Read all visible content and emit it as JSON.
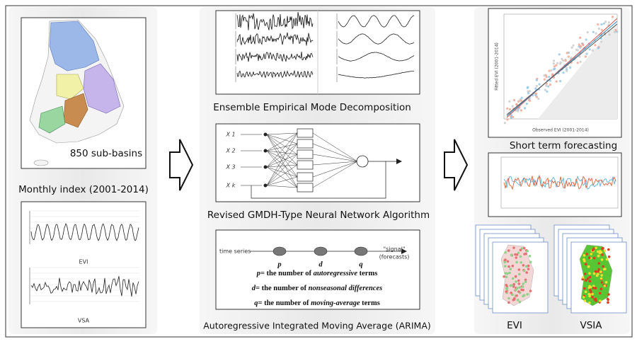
{
  "left": {
    "map_label": "850 sub-basins",
    "index_label": "Monthly index (2001-2014)",
    "chart_labels": [
      "EVI",
      "VSA"
    ]
  },
  "middle": {
    "eemd_label": "Ensemble Empirical Mode Decomposition",
    "nn_inputs": [
      "X 1",
      "X 2",
      "X 3",
      "X k"
    ],
    "nn_label": "Revised GMDH-Type Neural Network Algorithm",
    "arima": {
      "input": "time series",
      "output": [
        "\"signal\"",
        "(forecasts)"
      ],
      "params": [
        "p",
        "d",
        "q"
      ],
      "lines": [
        {
          "symbol": "p",
          "text": "= the number of ",
          "term": "autoregressive",
          "suffix": " terms"
        },
        {
          "symbol": "d",
          "text": "= the number of ",
          "term": "nonseasonal differences",
          "suffix": ""
        },
        {
          "symbol": "q",
          "text": "= the number of ",
          "term": "moving-average",
          "suffix": " terms"
        }
      ]
    },
    "arima_label": "Autoregressive Integrated Moving Average (ARIMA)"
  },
  "right": {
    "scatter_x_label": "Observed EVI (2001-2014)",
    "scatter_y_label": "Fitted EVI (2001-2014)",
    "forecast_label": "Short term forecasting",
    "map_labels": [
      "EVI",
      "VSIA"
    ]
  }
}
